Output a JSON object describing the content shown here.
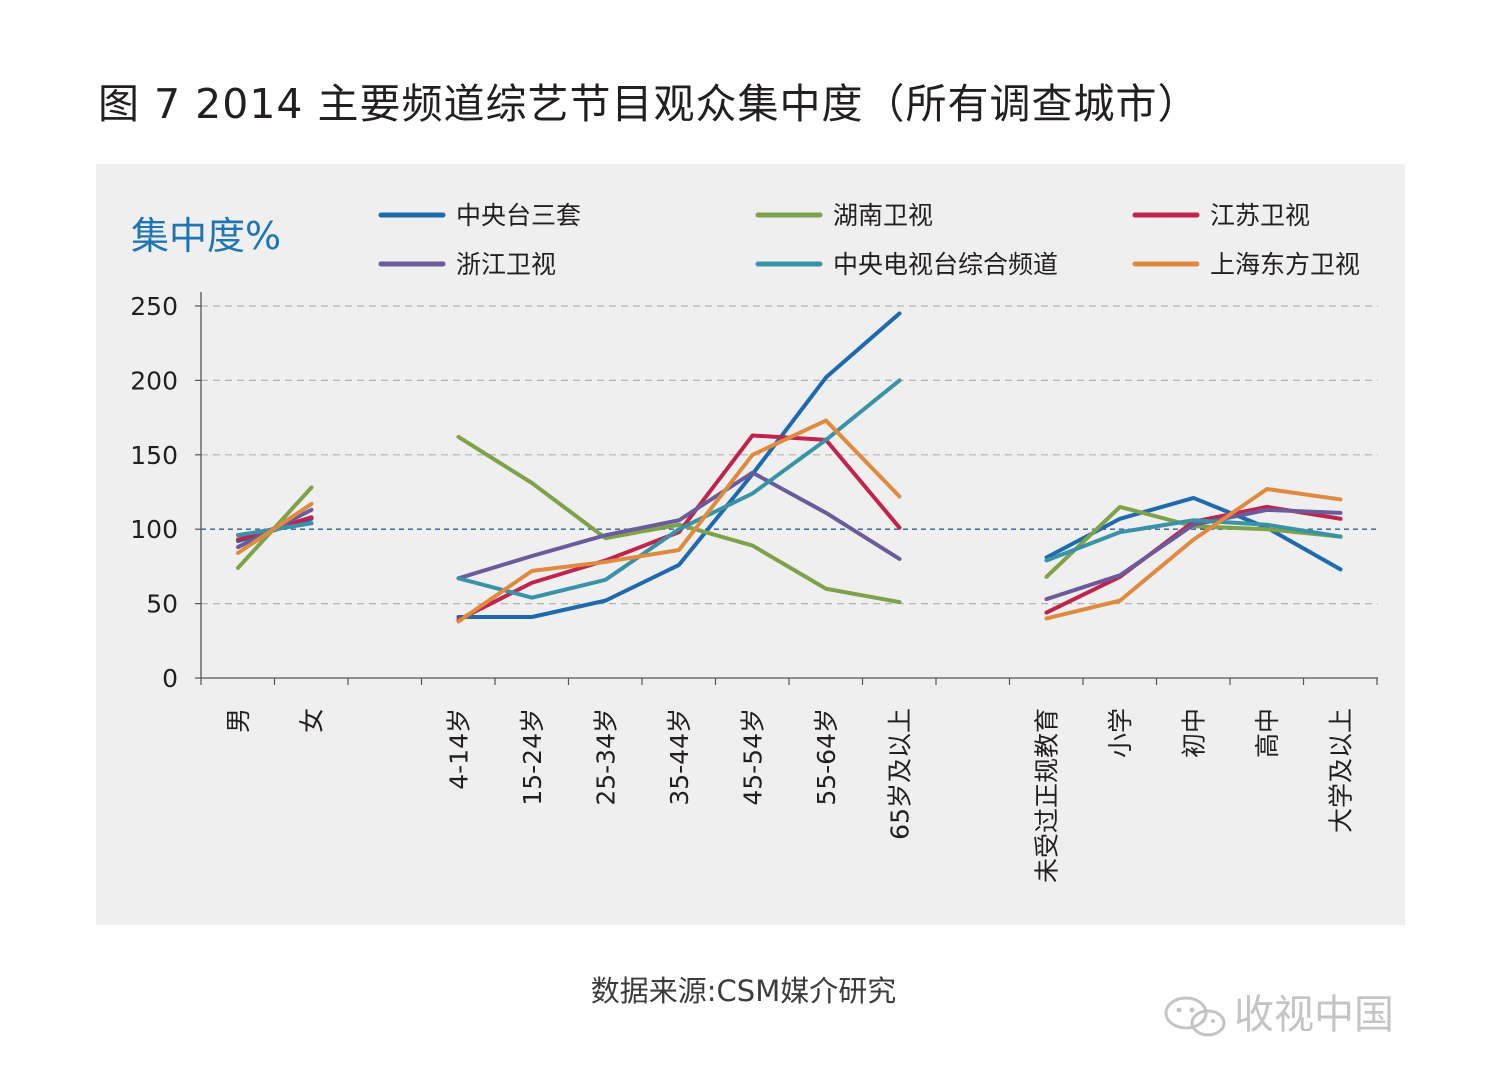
{
  "title": "图 7  2014 主要频道综艺节目观众集中度（所有调查城市）",
  "source": "数据来源:CSM媒介研究",
  "watermark": "收视中国",
  "chart_data": {
    "type": "line",
    "ylabel": "集中度%",
    "ylim": [
      0,
      250
    ],
    "yticks": [
      0,
      50,
      100,
      150,
      200,
      250
    ],
    "reference_line": 100,
    "grid": "horizontal dashed",
    "legend_position": "top",
    "groups": [
      [
        "男",
        "女"
      ],
      [
        "4-14岁",
        "15-24岁",
        "25-34岁",
        "35-44岁",
        "45-54岁",
        "55-64岁",
        "65岁及以上"
      ],
      [
        "未受过正规教育",
        "小学",
        "初中",
        "高中",
        "大学及以上"
      ]
    ],
    "series": [
      {
        "name": "中央台三套",
        "color": "#1f6aad",
        "values": [
          [
            92,
            107
          ],
          [
            41,
            41,
            52,
            76,
            137,
            202,
            245
          ],
          [
            81,
            107,
            121,
            101,
            73
          ]
        ]
      },
      {
        "name": "湖南卫视",
        "color": "#7da24a",
        "values": [
          [
            74,
            128
          ],
          [
            162,
            131,
            94,
            103,
            89,
            60,
            51
          ],
          [
            68,
            115,
            102,
            100,
            95
          ]
        ]
      },
      {
        "name": "江苏卫视",
        "color": "#c0234c",
        "values": [
          [
            93,
            108
          ],
          [
            39,
            64,
            79,
            98,
            163,
            160,
            101
          ],
          [
            44,
            68,
            105,
            115,
            107
          ]
        ]
      },
      {
        "name": "浙江卫视",
        "color": "#6c5b9b",
        "values": [
          [
            88,
            113
          ],
          [
            67,
            82,
            96,
            106,
            138,
            111,
            80
          ],
          [
            53,
            69,
            103,
            113,
            111
          ]
        ]
      },
      {
        "name": "中央电视台综合频道",
        "color": "#3a92a6",
        "values": [
          [
            96,
            104
          ],
          [
            67,
            54,
            66,
            100,
            124,
            160,
            200
          ],
          [
            79,
            98,
            106,
            103,
            95
          ]
        ]
      },
      {
        "name": "上海东方卫视",
        "color": "#df8a3e",
        "values": [
          [
            84,
            117
          ],
          [
            38,
            72,
            78,
            86,
            150,
            173,
            122
          ],
          [
            40,
            52,
            93,
            127,
            120
          ]
        ]
      }
    ]
  }
}
